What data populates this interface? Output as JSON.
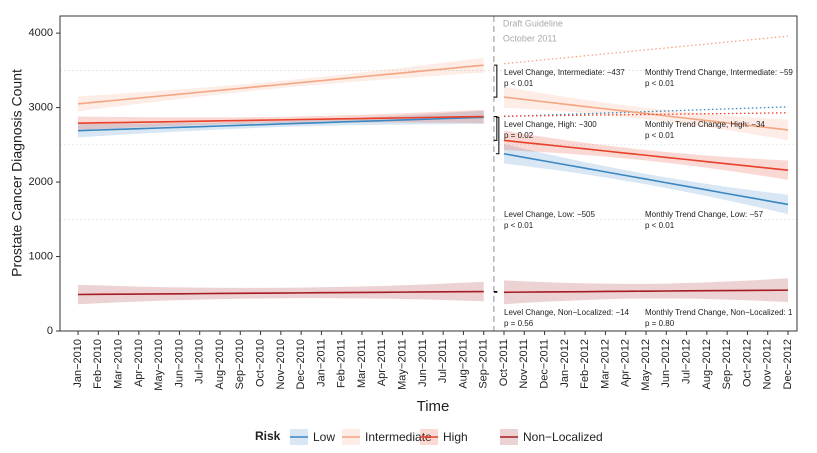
{
  "chart_data": {
    "type": "line",
    "x_label": "Time",
    "y_label": "Prostate Cancer Diagnosis Count",
    "categories": [
      "Jan−2010",
      "Feb−2010",
      "Mar−2010",
      "Apr−2010",
      "May−2010",
      "Jun−2010",
      "Jul−2010",
      "Aug−2010",
      "Sep−2010",
      "Oct−2010",
      "Nov−2010",
      "Dec−2010",
      "Jan−2011",
      "Feb−2011",
      "Mar−2011",
      "Apr−2011",
      "May−2011",
      "Jun−2011",
      "Jul−2011",
      "Aug−2011",
      "Sep−2011",
      "Oct−2011",
      "Nov−2011",
      "Dec−2011",
      "Jan−2012",
      "Feb−2012",
      "Mar−2012",
      "Apr−2012",
      "May−2012",
      "Jun−2012",
      "Jul−2012",
      "Aug−2012",
      "Sep−2012",
      "Oct−2012",
      "Nov−2012",
      "Dec−2012"
    ],
    "intervention": {
      "category": "Oct−2011",
      "label": [
        "Draft Guideline",
        "October 2011"
      ]
    },
    "ylim": [
      0,
      4230
    ],
    "yticks": [
      0,
      1000,
      2000,
      3000,
      4000
    ],
    "yminor": [
      1500,
      2500,
      3500
    ],
    "legend": {
      "title": "Risk",
      "position": "bottom"
    },
    "series": [
      {
        "name": "Low",
        "color": "#3a87c2",
        "values": [
          2690,
          2699,
          2708,
          2717,
          2726,
          2735,
          2744,
          2753,
          2762,
          2771,
          2780,
          2789,
          2798,
          2807,
          2816,
          2825,
          2834,
          2843,
          2852,
          2861,
          2870,
          2380,
          2331,
          2283,
          2234,
          2186,
          2137,
          2088,
          2040,
          1991,
          1943,
          1894,
          1845,
          1797,
          1748,
          1700
        ],
        "errors": [
          90,
          82,
          75,
          68,
          62,
          56,
          51,
          47,
          44,
          42,
          41,
          42,
          44,
          47,
          51,
          56,
          62,
          68,
          75,
          82,
          90,
          130,
          115,
          102,
          91,
          82,
          76,
          72,
          70,
          72,
          76,
          82,
          91,
          102,
          115,
          130
        ],
        "counterfactual": [
          null,
          null,
          null,
          null,
          null,
          null,
          null,
          null,
          null,
          null,
          null,
          null,
          null,
          null,
          null,
          null,
          null,
          null,
          null,
          null,
          null,
          2880,
          2889,
          2899,
          2908,
          2917,
          2927,
          2936,
          2945,
          2954,
          2964,
          2973,
          2982,
          2992,
          3001,
          3010
        ]
      },
      {
        "name": "Intermediate",
        "color": "#f4a582",
        "values": [
          3050,
          3076,
          3102,
          3128,
          3154,
          3180,
          3206,
          3232,
          3258,
          3284,
          3310,
          3336,
          3362,
          3388,
          3414,
          3440,
          3466,
          3492,
          3518,
          3544,
          3570,
          3140,
          3109,
          3077,
          3046,
          3014,
          2983,
          2952,
          2920,
          2889,
          2857,
          2826,
          2795,
          2763,
          2732,
          2700
        ],
        "errors": [
          100,
          92,
          84,
          77,
          70,
          64,
          59,
          55,
          52,
          50,
          49,
          50,
          52,
          55,
          59,
          64,
          70,
          77,
          84,
          92,
          100,
          140,
          124,
          110,
          98,
          89,
          82,
          78,
          76,
          78,
          82,
          89,
          98,
          110,
          124,
          140
        ],
        "counterfactual": [
          null,
          null,
          null,
          null,
          null,
          null,
          null,
          null,
          null,
          null,
          null,
          null,
          null,
          null,
          null,
          null,
          null,
          null,
          null,
          null,
          null,
          3590,
          3616,
          3643,
          3669,
          3696,
          3722,
          3748,
          3775,
          3801,
          3828,
          3854,
          3880,
          3907,
          3933,
          3960
        ]
      },
      {
        "name": "High",
        "color": "#e8402a",
        "values": [
          2790,
          2795,
          2799,
          2804,
          2808,
          2813,
          2817,
          2822,
          2826,
          2831,
          2835,
          2840,
          2844,
          2849,
          2853,
          2858,
          2862,
          2867,
          2871,
          2876,
          2880,
          2560,
          2531,
          2503,
          2474,
          2446,
          2417,
          2388,
          2360,
          2331,
          2303,
          2274,
          2245,
          2217,
          2188,
          2160
        ],
        "errors": [
          90,
          82,
          75,
          68,
          62,
          56,
          51,
          47,
          44,
          42,
          41,
          42,
          44,
          47,
          51,
          56,
          62,
          68,
          75,
          82,
          90,
          130,
          115,
          102,
          91,
          82,
          76,
          72,
          70,
          72,
          76,
          82,
          91,
          102,
          115,
          130
        ],
        "counterfactual": [
          null,
          null,
          null,
          null,
          null,
          null,
          null,
          null,
          null,
          null,
          null,
          null,
          null,
          null,
          null,
          null,
          null,
          null,
          null,
          null,
          null,
          2885,
          2888,
          2891,
          2895,
          2898,
          2901,
          2904,
          2907,
          2911,
          2914,
          2917,
          2920,
          2923,
          2927,
          2930
        ]
      },
      {
        "name": "Non−Localized",
        "color": "#a51c22",
        "values": [
          490,
          492,
          494,
          496,
          498,
          500,
          502,
          504,
          506,
          508,
          510,
          512,
          514,
          516,
          518,
          520,
          522,
          524,
          526,
          528,
          530,
          520,
          522,
          524,
          526,
          528,
          531,
          533,
          535,
          537,
          539,
          541,
          543,
          545,
          547,
          549
        ],
        "errors": [
          130,
          120,
          110,
          100,
          92,
          85,
          80,
          76,
          73,
          71,
          70,
          71,
          73,
          76,
          80,
          85,
          92,
          100,
          110,
          120,
          130,
          160,
          145,
          132,
          121,
          112,
          105,
          100,
          98,
          100,
          105,
          112,
          121,
          132,
          145,
          160
        ]
      }
    ],
    "annotations": [
      {
        "text": "Level Change, Intermediate: −437",
        "p": "p  < 0.01"
      },
      {
        "text": "Monthly Trend Change, Intermediate: −59",
        "p": "p  < 0.01"
      },
      {
        "text": "Level Change, High: −300",
        "p": "p  = 0.02"
      },
      {
        "text": "Monthly Trend Change, High: −34",
        "p": "p  < 0.01"
      },
      {
        "text": "Level Change, Low: −505",
        "p": "p  < 0.01"
      },
      {
        "text": "Monthly Trend Change, Low: −57",
        "p": "p  < 0.01"
      },
      {
        "text": "Level Change, Non−Localized: −14",
        "p": "p  = 0.56"
      },
      {
        "text": "Monthly Trend Change, Non−Localized: 1",
        "p": "p  = 0.80"
      }
    ]
  }
}
